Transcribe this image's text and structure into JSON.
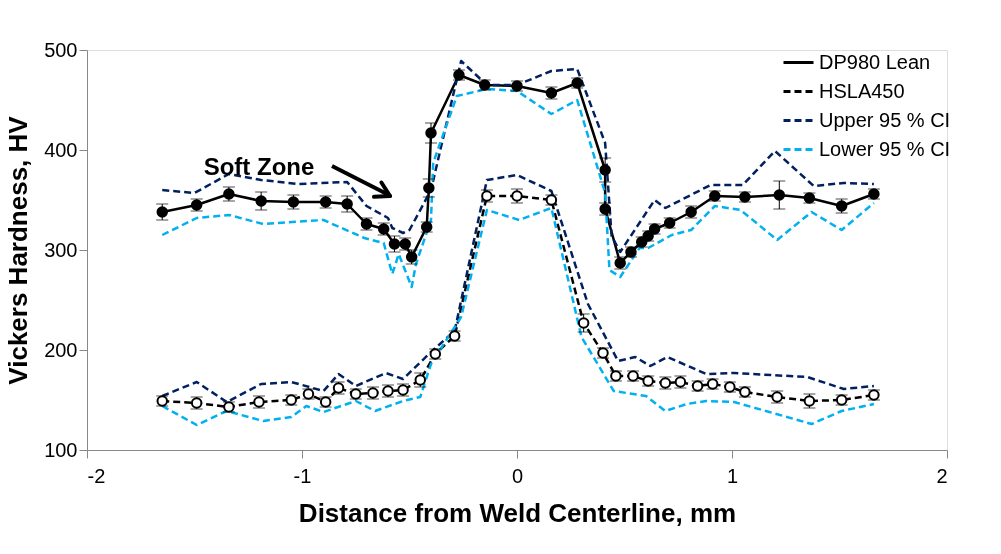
{
  "chart_data": {
    "type": "line",
    "xlabel": "Distance from Weld Centerline, mm",
    "ylabel": "Vickers Hardness, HV",
    "xlim": [
      -2,
      2
    ],
    "xticks": [
      -2,
      -1,
      0,
      1,
      2
    ],
    "ylim": [
      100,
      500
    ],
    "yticks": [
      100,
      200,
      300,
      400,
      500
    ],
    "grid": false,
    "legend": "top right",
    "annotations": [
      "Soft Zone"
    ],
    "series": [
      {
        "name": "DP980 Lean",
        "color": "#000000",
        "line_style": "solid",
        "marker": "circle",
        "x": [
          -1.65,
          -1.49,
          -1.34,
          -1.19,
          -1.04,
          -0.89,
          -0.79,
          -0.7,
          -0.62,
          -0.57,
          -0.52,
          -0.49,
          -0.42,
          -0.41,
          -0.4,
          -0.27,
          -0.15,
          0.0,
          0.16,
          0.28,
          0.41,
          0.41,
          0.48,
          0.53,
          0.58,
          0.61,
          0.64,
          0.71,
          0.81,
          0.92,
          1.06,
          1.22,
          1.36,
          1.51,
          1.66
        ],
        "values": [
          338,
          345,
          356,
          349,
          348,
          348,
          346,
          326,
          321,
          306,
          306,
          293,
          323,
          362,
          417,
          475,
          465,
          464,
          457,
          467,
          380,
          341,
          287,
          298,
          308,
          314,
          321,
          327,
          338,
          354,
          353,
          355,
          352,
          344,
          356
        ],
        "errors": [
          8,
          6,
          7,
          9,
          7,
          6,
          8,
          6,
          6,
          8,
          6,
          7,
          5,
          9,
          10,
          5,
          5,
          5,
          6,
          5,
          12,
          6,
          6,
          5,
          5,
          5,
          5,
          5,
          6,
          5,
          5,
          14,
          5,
          7,
          5
        ]
      },
      {
        "name": "HSLA450",
        "color": "#000000",
        "line_style": "dashed",
        "marker": "circle",
        "x": [
          -1.65,
          -1.49,
          -1.34,
          -1.2,
          -1.05,
          -0.97,
          -0.89,
          -0.83,
          -0.75,
          -0.67,
          -0.6,
          -0.53,
          -0.45,
          -0.38,
          -0.29,
          -0.14,
          0.0,
          0.16,
          0.31,
          0.4,
          0.46,
          0.54,
          0.61,
          0.69,
          0.76,
          0.84,
          0.91,
          0.99,
          1.06,
          1.21,
          1.36,
          1.51,
          1.66
        ],
        "values": [
          149,
          147,
          143,
          148,
          150,
          156,
          148,
          162,
          156,
          157,
          159,
          160,
          170,
          196,
          214,
          354,
          354,
          350,
          227,
          197,
          174,
          174,
          169,
          167,
          168,
          164,
          166,
          163,
          158,
          153,
          149,
          150,
          155
        ],
        "errors": [
          5,
          6,
          5,
          6,
          5,
          5,
          5,
          6,
          5,
          6,
          6,
          6,
          7,
          5,
          5,
          6,
          7,
          5,
          9,
          5,
          5,
          5,
          5,
          6,
          6,
          5,
          5,
          5,
          5,
          6,
          7,
          5,
          5
        ]
      },
      {
        "name": "Upper 95 % CI",
        "color": "#002060",
        "line_style": "dashed",
        "marker": "none",
        "x": [
          -1.65,
          -1.5,
          -1.34,
          -1.19,
          -1.02,
          -0.79,
          -0.7,
          -0.6,
          -0.58,
          -0.53,
          -0.5,
          -0.4,
          -0.26,
          -0.14,
          0.0,
          0.16,
          0.28,
          0.41,
          0.44,
          0.48,
          0.64,
          0.69,
          0.9,
          1.05,
          1.2,
          1.38,
          1.52,
          1.66
        ],
        "values": [
          360,
          357,
          376,
          370,
          366,
          368,
          344,
          332,
          322,
          317,
          320,
          360,
          489,
          465,
          465,
          479,
          481,
          407,
          314,
          298,
          350,
          342,
          365,
          365,
          399,
          364,
          367,
          366
        ]
      },
      {
        "name": "Lower 95 % CI",
        "color": "#00b0f0",
        "line_style": "dashed",
        "marker": "none",
        "x": [
          -1.65,
          -1.49,
          -1.34,
          -1.18,
          -0.9,
          -0.71,
          -0.62,
          -0.58,
          -0.55,
          -0.49,
          -0.47,
          -0.4,
          -0.39,
          -0.28,
          -0.14,
          0.0,
          0.16,
          0.28,
          0.41,
          0.43,
          0.48,
          0.57,
          0.61,
          0.72,
          0.81,
          0.92,
          1.04,
          1.21,
          1.37,
          1.51,
          1.66
        ],
        "values": [
          315,
          332,
          335,
          326,
          330,
          312,
          307,
          276,
          296,
          263,
          286,
          330,
          387,
          454,
          461,
          459,
          436,
          450,
          357,
          280,
          273,
          302,
          302,
          315,
          320,
          344,
          340,
          310,
          338,
          320,
          347
        ]
      },
      {
        "color": "#002060",
        "line_style": "dashed",
        "marker": "none",
        "x": [
          -1.65,
          -1.49,
          -1.35,
          -1.19,
          -1.05,
          -0.9,
          -0.83,
          -0.75,
          -0.61,
          -0.53,
          -0.4,
          -0.29,
          -0.14,
          0.0,
          0.16,
          0.33,
          0.47,
          0.55,
          0.62,
          0.7,
          0.88,
          1.01,
          1.35,
          1.52,
          1.66
        ],
        "values": [
          154,
          168,
          148,
          166,
          168,
          159,
          176,
          164,
          177,
          171,
          198,
          219,
          370,
          375,
          359,
          246,
          189,
          193,
          184,
          193,
          176,
          177,
          173,
          161,
          164
        ]
      },
      {
        "color": "#00b0f0",
        "line_style": "dashed",
        "marker": "none",
        "x": [
          -1.65,
          -1.49,
          -1.35,
          -1.18,
          -1.05,
          -0.98,
          -0.9,
          -0.75,
          -0.66,
          -0.53,
          -0.45,
          -0.4,
          -0.26,
          -0.14,
          0.01,
          0.16,
          0.3,
          0.45,
          0.6,
          0.69,
          0.79,
          0.88,
          1.01,
          1.37,
          1.51,
          1.66
        ],
        "values": [
          144,
          125,
          139,
          129,
          133,
          144,
          138,
          149,
          139,
          149,
          153,
          186,
          233,
          340,
          330,
          342,
          213,
          159,
          154,
          139,
          146,
          149,
          148,
          126,
          139,
          146
        ]
      }
    ]
  }
}
